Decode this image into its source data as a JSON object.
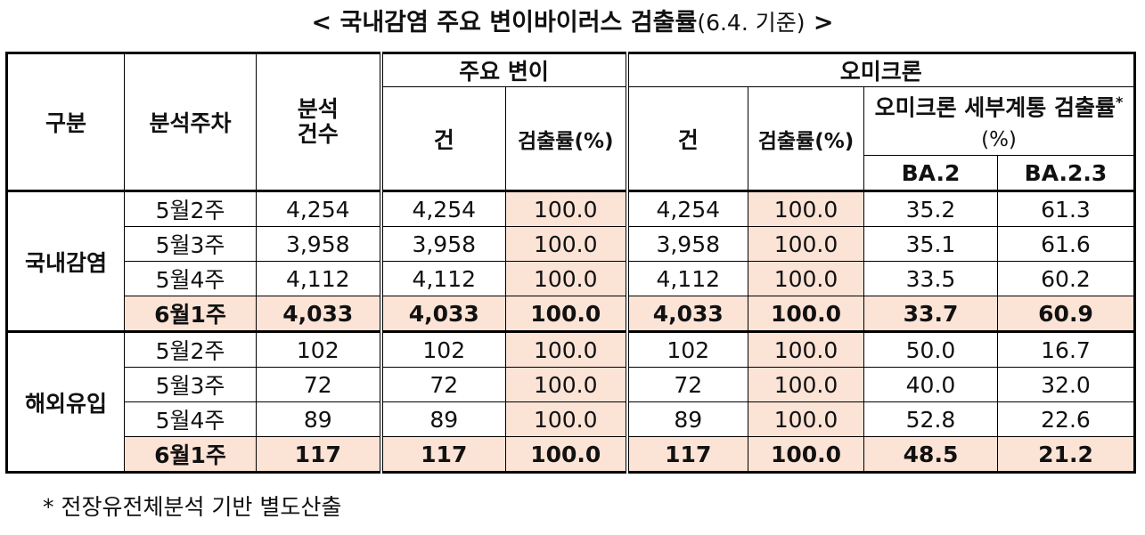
{
  "title": {
    "main": "< 국내감염 주요 변이바이러스 검출률",
    "date": "(6.4. 기준)",
    "end": " >"
  },
  "headers": {
    "category": "구분",
    "week": "분석주차",
    "analysis_count": "분석\n건수",
    "major_variant": "주요 변이",
    "omicron": "오미크론",
    "count": "건",
    "rate": "검출률(%)",
    "subtype_rate": "오미크론 세부계통 검출률",
    "subtype_rate_mark": "*",
    "subtype_rate_unit": "(%)",
    "ba2": "BA.2",
    "ba23": "BA.2.3"
  },
  "groups": [
    {
      "name": "국내감염",
      "rows": [
        {
          "week": "5월2주",
          "analysis": "4,254",
          "major_count": "4,254",
          "major_rate": "100.0",
          "omi_count": "4,254",
          "omi_rate": "100.0",
          "ba2": "35.2",
          "ba23": "61.3"
        },
        {
          "week": "5월3주",
          "analysis": "3,958",
          "major_count": "3,958",
          "major_rate": "100.0",
          "omi_count": "3,958",
          "omi_rate": "100.0",
          "ba2": "35.1",
          "ba23": "61.6"
        },
        {
          "week": "5월4주",
          "analysis": "4,112",
          "major_count": "4,112",
          "major_rate": "100.0",
          "omi_count": "4,112",
          "omi_rate": "100.0",
          "ba2": "33.5",
          "ba23": "60.2"
        },
        {
          "week": "6월1주",
          "analysis": "4,033",
          "major_count": "4,033",
          "major_rate": "100.0",
          "omi_count": "4,033",
          "omi_rate": "100.0",
          "ba2": "33.7",
          "ba23": "60.9"
        }
      ]
    },
    {
      "name": "해외유입",
      "rows": [
        {
          "week": "5월2주",
          "analysis": "102",
          "major_count": "102",
          "major_rate": "100.0",
          "omi_count": "102",
          "omi_rate": "100.0",
          "ba2": "50.0",
          "ba23": "16.7"
        },
        {
          "week": "5월3주",
          "analysis": "72",
          "major_count": "72",
          "major_rate": "100.0",
          "omi_count": "72",
          "omi_rate": "100.0",
          "ba2": "40.0",
          "ba23": "32.0"
        },
        {
          "week": "5월4주",
          "analysis": "89",
          "major_count": "89",
          "major_rate": "100.0",
          "omi_count": "89",
          "omi_rate": "100.0",
          "ba2": "52.8",
          "ba23": "22.6"
        },
        {
          "week": "6월1주",
          "analysis": "117",
          "major_count": "117",
          "major_rate": "100.0",
          "omi_count": "117",
          "omi_rate": "100.0",
          "ba2": "48.5",
          "ba23": "21.2"
        }
      ]
    }
  ],
  "footnote": "* 전장유전체분석 기반 별도산출",
  "colors": {
    "highlight": "#fbe3d6",
    "border": "#000000"
  }
}
